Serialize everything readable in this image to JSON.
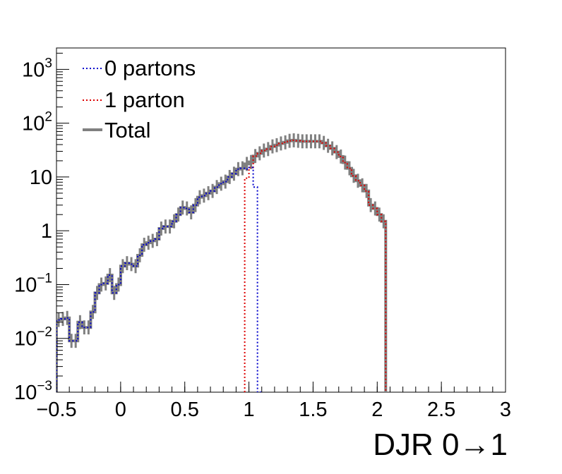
{
  "chart_data": {
    "type": "line",
    "xlabel": "DJR 0→1",
    "ylabel": "",
    "title": "",
    "xlim": [
      -0.5,
      3
    ],
    "ylim": [
      0.001,
      2500
    ],
    "yscale": "log",
    "grid": false,
    "legend_position": "top-left",
    "x_ticks": [
      {
        "value": -0.5,
        "label": "−0.5"
      },
      {
        "value": 0,
        "label": "0"
      },
      {
        "value": 0.5,
        "label": "0.5"
      },
      {
        "value": 1,
        "label": "1"
      },
      {
        "value": 1.5,
        "label": "1.5"
      },
      {
        "value": 2,
        "label": "2"
      },
      {
        "value": 2.5,
        "label": "2.5"
      },
      {
        "value": 3,
        "label": "3"
      }
    ],
    "y_ticks": [
      {
        "value": 0.001,
        "base": "10",
        "exp": "−3"
      },
      {
        "value": 0.01,
        "base": "10",
        "exp": "−2"
      },
      {
        "value": 0.1,
        "base": "10",
        "exp": "−1"
      },
      {
        "value": 1,
        "base": "1",
        "exp": ""
      },
      {
        "value": 10,
        "base": "10",
        "exp": ""
      },
      {
        "value": 100,
        "base": "10",
        "exp": "2"
      },
      {
        "value": 1000,
        "base": "10",
        "exp": "3"
      }
    ],
    "bin_width": 0.0333,
    "series": [
      {
        "name": "0 partons",
        "color": "#0000cc",
        "style": "dotted",
        "bins": [
          {
            "x0": -0.5,
            "y": 0.022
          },
          {
            "x0": -0.467,
            "y": 0.023
          },
          {
            "x0": -0.433,
            "y": 0.024
          },
          {
            "x0": -0.4,
            "y": 0.009
          },
          {
            "x0": -0.367,
            "y": 0.009
          },
          {
            "x0": -0.333,
            "y": 0.02
          },
          {
            "x0": -0.3,
            "y": 0.016
          },
          {
            "x0": -0.267,
            "y": 0.016
          },
          {
            "x0": -0.233,
            "y": 0.031
          },
          {
            "x0": -0.2,
            "y": 0.07
          },
          {
            "x0": -0.167,
            "y": 0.1
          },
          {
            "x0": -0.133,
            "y": 0.105
          },
          {
            "x0": -0.1,
            "y": 0.15
          },
          {
            "x0": -0.067,
            "y": 0.07
          },
          {
            "x0": -0.033,
            "y": 0.1
          },
          {
            "x0": 0.0,
            "y": 0.22
          },
          {
            "x0": 0.033,
            "y": 0.25
          },
          {
            "x0": 0.067,
            "y": 0.24
          },
          {
            "x0": 0.1,
            "y": 0.22
          },
          {
            "x0": 0.133,
            "y": 0.35
          },
          {
            "x0": 0.167,
            "y": 0.55
          },
          {
            "x0": 0.2,
            "y": 0.6
          },
          {
            "x0": 0.233,
            "y": 0.65
          },
          {
            "x0": 0.267,
            "y": 0.7
          },
          {
            "x0": 0.3,
            "y": 1.1
          },
          {
            "x0": 0.333,
            "y": 1.2
          },
          {
            "x0": 0.367,
            "y": 1.2
          },
          {
            "x0": 0.4,
            "y": 1.5
          },
          {
            "x0": 0.433,
            "y": 2.0
          },
          {
            "x0": 0.467,
            "y": 2.7
          },
          {
            "x0": 0.5,
            "y": 2.6
          },
          {
            "x0": 0.533,
            "y": 2.2
          },
          {
            "x0": 0.567,
            "y": 3.0
          },
          {
            "x0": 0.6,
            "y": 4.2
          },
          {
            "x0": 0.633,
            "y": 4.5
          },
          {
            "x0": 0.667,
            "y": 5.0
          },
          {
            "x0": 0.7,
            "y": 5.5
          },
          {
            "x0": 0.733,
            "y": 6.5
          },
          {
            "x0": 0.767,
            "y": 7.5
          },
          {
            "x0": 0.8,
            "y": 8.2
          },
          {
            "x0": 0.833,
            "y": 10.0
          },
          {
            "x0": 0.867,
            "y": 11.5
          },
          {
            "x0": 0.9,
            "y": 14.0
          },
          {
            "x0": 0.933,
            "y": 14.5
          },
          {
            "x0": 0.967,
            "y": 14.0
          },
          {
            "x0": 1.0,
            "y": 15.0
          },
          {
            "x0": 1.033,
            "y": 6.5
          },
          {
            "x0": 1.067,
            "y": 0.001
          }
        ]
      },
      {
        "name": "1 parton",
        "color": "#dd0000",
        "style": "dotted",
        "bins": [
          {
            "x0": 0.967,
            "y": 9.5
          },
          {
            "x0": 1.0,
            "y": 15.0
          },
          {
            "x0": 1.033,
            "y": 24.5
          },
          {
            "x0": 1.067,
            "y": 27.5
          },
          {
            "x0": 1.1,
            "y": 31.0
          },
          {
            "x0": 1.133,
            "y": 33.0
          },
          {
            "x0": 1.167,
            "y": 37.0
          },
          {
            "x0": 1.2,
            "y": 39.0
          },
          {
            "x0": 1.233,
            "y": 42.0
          },
          {
            "x0": 1.267,
            "y": 44.0
          },
          {
            "x0": 1.3,
            "y": 47.0
          },
          {
            "x0": 1.333,
            "y": 48.0
          },
          {
            "x0": 1.367,
            "y": 47.0
          },
          {
            "x0": 1.4,
            "y": 46.0
          },
          {
            "x0": 1.433,
            "y": 46.0
          },
          {
            "x0": 1.467,
            "y": 46.0
          },
          {
            "x0": 1.5,
            "y": 46.0
          },
          {
            "x0": 1.533,
            "y": 46.0
          },
          {
            "x0": 1.567,
            "y": 43.0
          },
          {
            "x0": 1.6,
            "y": 38.0
          },
          {
            "x0": 1.633,
            "y": 34.0
          },
          {
            "x0": 1.667,
            "y": 29.0
          },
          {
            "x0": 1.7,
            "y": 24.0
          },
          {
            "x0": 1.733,
            "y": 18.5
          },
          {
            "x0": 1.767,
            "y": 14.5
          },
          {
            "x0": 1.8,
            "y": 10.5
          },
          {
            "x0": 1.833,
            "y": 8.5
          },
          {
            "x0": 1.867,
            "y": 7.0
          },
          {
            "x0": 1.9,
            "y": 5.5
          },
          {
            "x0": 1.933,
            "y": 3.0
          },
          {
            "x0": 1.967,
            "y": 2.6
          },
          {
            "x0": 2.0,
            "y": 2.0
          },
          {
            "x0": 2.033,
            "y": 1.5
          }
        ]
      },
      {
        "name": "Total",
        "color": "#808080",
        "style": "solid",
        "bins": [
          {
            "x0": -0.5,
            "y": 0.022
          },
          {
            "x0": -0.467,
            "y": 0.023
          },
          {
            "x0": -0.433,
            "y": 0.024
          },
          {
            "x0": -0.4,
            "y": 0.009
          },
          {
            "x0": -0.367,
            "y": 0.009
          },
          {
            "x0": -0.333,
            "y": 0.02
          },
          {
            "x0": -0.3,
            "y": 0.016
          },
          {
            "x0": -0.267,
            "y": 0.016
          },
          {
            "x0": -0.233,
            "y": 0.031
          },
          {
            "x0": -0.2,
            "y": 0.07
          },
          {
            "x0": -0.167,
            "y": 0.1
          },
          {
            "x0": -0.133,
            "y": 0.105
          },
          {
            "x0": -0.1,
            "y": 0.15
          },
          {
            "x0": -0.067,
            "y": 0.07
          },
          {
            "x0": -0.033,
            "y": 0.1
          },
          {
            "x0": 0.0,
            "y": 0.22
          },
          {
            "x0": 0.033,
            "y": 0.25
          },
          {
            "x0": 0.067,
            "y": 0.24
          },
          {
            "x0": 0.1,
            "y": 0.22
          },
          {
            "x0": 0.133,
            "y": 0.35
          },
          {
            "x0": 0.167,
            "y": 0.55
          },
          {
            "x0": 0.2,
            "y": 0.6
          },
          {
            "x0": 0.233,
            "y": 0.65
          },
          {
            "x0": 0.267,
            "y": 0.7
          },
          {
            "x0": 0.3,
            "y": 1.1
          },
          {
            "x0": 0.333,
            "y": 1.2
          },
          {
            "x0": 0.367,
            "y": 1.2
          },
          {
            "x0": 0.4,
            "y": 1.5
          },
          {
            "x0": 0.433,
            "y": 2.0
          },
          {
            "x0": 0.467,
            "y": 2.7
          },
          {
            "x0": 0.5,
            "y": 2.6
          },
          {
            "x0": 0.533,
            "y": 2.2
          },
          {
            "x0": 0.567,
            "y": 3.0
          },
          {
            "x0": 0.6,
            "y": 4.2
          },
          {
            "x0": 0.633,
            "y": 4.5
          },
          {
            "x0": 0.667,
            "y": 5.0
          },
          {
            "x0": 0.7,
            "y": 5.5
          },
          {
            "x0": 0.733,
            "y": 6.5
          },
          {
            "x0": 0.767,
            "y": 7.5
          },
          {
            "x0": 0.8,
            "y": 8.2
          },
          {
            "x0": 0.833,
            "y": 10.0
          },
          {
            "x0": 0.867,
            "y": 11.5
          },
          {
            "x0": 0.9,
            "y": 14.0
          },
          {
            "x0": 0.933,
            "y": 14.5
          },
          {
            "x0": 0.967,
            "y": 17.5
          },
          {
            "x0": 1.0,
            "y": 19.0
          },
          {
            "x0": 1.033,
            "y": 24.5
          },
          {
            "x0": 1.067,
            "y": 27.5
          },
          {
            "x0": 1.1,
            "y": 31.0
          },
          {
            "x0": 1.133,
            "y": 33.0
          },
          {
            "x0": 1.167,
            "y": 37.0
          },
          {
            "x0": 1.2,
            "y": 39.0
          },
          {
            "x0": 1.233,
            "y": 42.0
          },
          {
            "x0": 1.267,
            "y": 44.0
          },
          {
            "x0": 1.3,
            "y": 47.0
          },
          {
            "x0": 1.333,
            "y": 48.0
          },
          {
            "x0": 1.367,
            "y": 47.0
          },
          {
            "x0": 1.4,
            "y": 46.0
          },
          {
            "x0": 1.433,
            "y": 46.0
          },
          {
            "x0": 1.467,
            "y": 46.0
          },
          {
            "x0": 1.5,
            "y": 46.0
          },
          {
            "x0": 1.533,
            "y": 46.0
          },
          {
            "x0": 1.567,
            "y": 43.0
          },
          {
            "x0": 1.6,
            "y": 38.0
          },
          {
            "x0": 1.633,
            "y": 34.0
          },
          {
            "x0": 1.667,
            "y": 29.0
          },
          {
            "x0": 1.7,
            "y": 24.0
          },
          {
            "x0": 1.733,
            "y": 18.5
          },
          {
            "x0": 1.767,
            "y": 14.5
          },
          {
            "x0": 1.8,
            "y": 10.5
          },
          {
            "x0": 1.833,
            "y": 8.5
          },
          {
            "x0": 1.867,
            "y": 7.0
          },
          {
            "x0": 1.9,
            "y": 5.5
          },
          {
            "x0": 1.933,
            "y": 3.0
          },
          {
            "x0": 1.967,
            "y": 2.6
          },
          {
            "x0": 2.0,
            "y": 2.0
          },
          {
            "x0": 2.033,
            "y": 1.5
          }
        ]
      }
    ]
  }
}
